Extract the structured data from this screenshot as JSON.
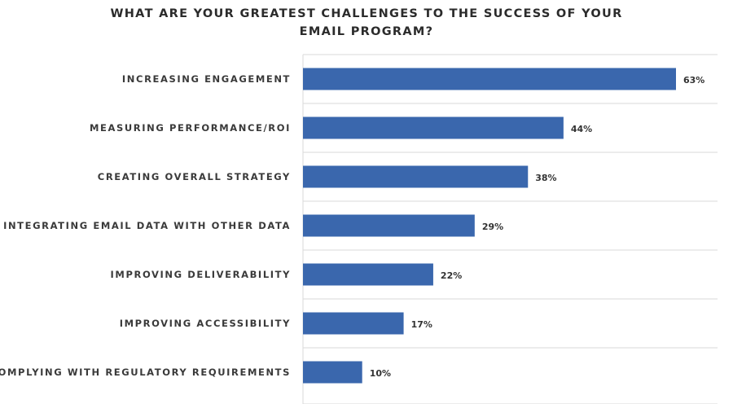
{
  "chart_data": {
    "type": "bar",
    "orientation": "horizontal",
    "title_lines": [
      "WHAT ARE YOUR GREATEST CHALLENGES TO THE SUCCESS OF YOUR",
      "EMAIL PROGRAM?"
    ],
    "categories": [
      "INCREASING ENGAGEMENT",
      "MEASURING PERFORMANCE/ROI",
      "CREATING OVERALL STRATEGY",
      "INTEGRATING EMAIL DATA WITH OTHER DATA",
      "IMPROVING DELIVERABILITY",
      "IMPROVING ACCESSIBILITY",
      "COMPLYING WITH REGULATORY REQUIREMENTS"
    ],
    "values": [
      63,
      44,
      38,
      29,
      22,
      17,
      10
    ],
    "value_labels": [
      "63%",
      "44%",
      "38%",
      "29%",
      "22%",
      "17%",
      "10%"
    ],
    "xlim": [
      0,
      70
    ],
    "grid": "horizontal separators between categories",
    "legend": "none",
    "bar_color": "#3a67ad",
    "grid_color": "#d9d9d9"
  }
}
